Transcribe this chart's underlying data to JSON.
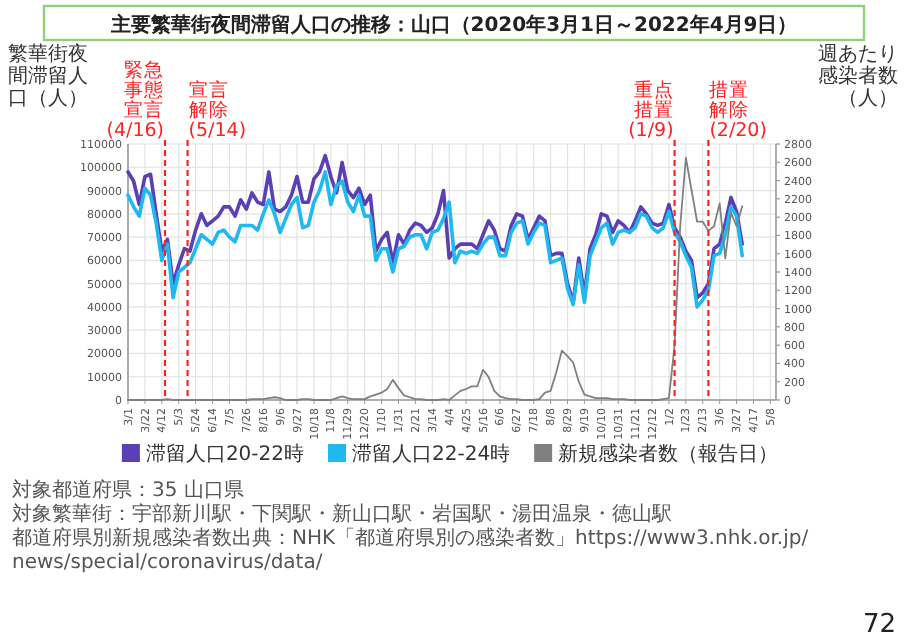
{
  "chart_data": {
    "type": "line",
    "title": "主要繁華街夜間滞留人口の推移：山口（2020年3月1日～2022年4月9日）",
    "ylabel": "繁華街夜間滞留人口（人）",
    "y2label": "週あたり感染者数（人）",
    "x": [
      "2020-03-01",
      "2020-03-08",
      "2020-03-15",
      "2020-03-22",
      "2020-03-29",
      "2020-04-05",
      "2020-04-12",
      "2020-04-19",
      "2020-04-26",
      "2020-05-03",
      "2020-05-10",
      "2020-05-17",
      "2020-05-24",
      "2020-05-31",
      "2020-06-07",
      "2020-06-14",
      "2020-06-21",
      "2020-06-28",
      "2020-07-05",
      "2020-07-12",
      "2020-07-19",
      "2020-07-26",
      "2020-08-02",
      "2020-08-09",
      "2020-08-16",
      "2020-08-23",
      "2020-08-30",
      "2020-09-06",
      "2020-09-13",
      "2020-09-20",
      "2020-09-27",
      "2020-10-04",
      "2020-10-11",
      "2020-10-18",
      "2020-10-25",
      "2020-11-01",
      "2020-11-08",
      "2020-11-15",
      "2020-11-22",
      "2020-11-29",
      "2020-12-06",
      "2020-12-13",
      "2020-12-20",
      "2020-12-27",
      "2021-01-03",
      "2021-01-10",
      "2021-01-17",
      "2021-01-24",
      "2021-01-31",
      "2021-02-07",
      "2021-02-14",
      "2021-02-21",
      "2021-02-28",
      "2021-03-07",
      "2021-03-14",
      "2021-03-21",
      "2021-03-28",
      "2021-04-04",
      "2021-04-11",
      "2021-04-18",
      "2021-04-25",
      "2021-05-02",
      "2021-05-09",
      "2021-05-16",
      "2021-05-23",
      "2021-05-30",
      "2021-06-06",
      "2021-06-13",
      "2021-06-20",
      "2021-06-27",
      "2021-07-04",
      "2021-07-11",
      "2021-07-18",
      "2021-07-25",
      "2021-08-01",
      "2021-08-08",
      "2021-08-15",
      "2021-08-22",
      "2021-08-29",
      "2021-09-05",
      "2021-09-12",
      "2021-09-19",
      "2021-09-26",
      "2021-10-03",
      "2021-10-10",
      "2021-10-17",
      "2021-10-24",
      "2021-10-31",
      "2021-11-07",
      "2021-11-14",
      "2021-11-21",
      "2021-11-28",
      "2021-12-05",
      "2021-12-12",
      "2021-12-19",
      "2021-12-26",
      "2022-01-02",
      "2022-01-09",
      "2022-01-16",
      "2022-01-23",
      "2022-01-30",
      "2022-02-06",
      "2022-02-13",
      "2022-02-20",
      "2022-02-27",
      "2022-03-06",
      "2022-03-13",
      "2022-03-20",
      "2022-03-27",
      "2022-04-03"
    ],
    "xlim": [
      "2020-03-01",
      "2022-05-15"
    ],
    "xticks": [
      {
        "value": "2020-03-01",
        "label": "3/1"
      },
      {
        "value": "2020-03-22",
        "label": "3/22"
      },
      {
        "value": "2020-04-12",
        "label": "4/12"
      },
      {
        "value": "2020-05-03",
        "label": "5/3"
      },
      {
        "value": "2020-05-24",
        "label": "5/24"
      },
      {
        "value": "2020-06-14",
        "label": "6/14"
      },
      {
        "value": "2020-07-05",
        "label": "7/5"
      },
      {
        "value": "2020-07-26",
        "label": "7/26"
      },
      {
        "value": "2020-08-16",
        "label": "8/16"
      },
      {
        "value": "2020-09-06",
        "label": "9/6"
      },
      {
        "value": "2020-09-27",
        "label": "9/27"
      },
      {
        "value": "2020-10-18",
        "label": "10/18"
      },
      {
        "value": "2020-11-08",
        "label": "11/8"
      },
      {
        "value": "2020-11-29",
        "label": "11/29"
      },
      {
        "value": "2020-12-20",
        "label": "12/20"
      },
      {
        "value": "2021-01-10",
        "label": "1/10"
      },
      {
        "value": "2021-01-31",
        "label": "1/31"
      },
      {
        "value": "2021-02-21",
        "label": "2/21"
      },
      {
        "value": "2021-03-14",
        "label": "3/14"
      },
      {
        "value": "2021-04-04",
        "label": "4/4"
      },
      {
        "value": "2021-04-25",
        "label": "4/25"
      },
      {
        "value": "2021-05-16",
        "label": "5/16"
      },
      {
        "value": "2021-06-06",
        "label": "6/6"
      },
      {
        "value": "2021-06-27",
        "label": "6/27"
      },
      {
        "value": "2021-07-18",
        "label": "7/18"
      },
      {
        "value": "2021-08-08",
        "label": "8/8"
      },
      {
        "value": "2021-08-29",
        "label": "8/29"
      },
      {
        "value": "2021-09-19",
        "label": "9/19"
      },
      {
        "value": "2021-10-10",
        "label": "10/10"
      },
      {
        "value": "2021-10-31",
        "label": "10/31"
      },
      {
        "value": "2021-11-21",
        "label": "11/21"
      },
      {
        "value": "2021-12-12",
        "label": "12/12"
      },
      {
        "value": "2022-01-02",
        "label": "1/2"
      },
      {
        "value": "2022-01-23",
        "label": "1/23"
      },
      {
        "value": "2022-02-13",
        "label": "2/13"
      },
      {
        "value": "2022-03-06",
        "label": "3/6"
      },
      {
        "value": "2022-03-27",
        "label": "3/27"
      },
      {
        "value": "2022-04-17",
        "label": "4/17"
      },
      {
        "value": "2022-05-08",
        "label": "5/8"
      }
    ],
    "ylim": [
      0,
      110000
    ],
    "yticks": [
      0,
      10000,
      20000,
      30000,
      40000,
      50000,
      60000,
      70000,
      80000,
      90000,
      100000,
      110000
    ],
    "y2lim": [
      0,
      2800
    ],
    "y2ticks": [
      0,
      200,
      400,
      600,
      800,
      1000,
      1200,
      1400,
      1600,
      1800,
      2000,
      2200,
      2400,
      2600,
      2800
    ],
    "series": [
      {
        "name": "滞留人口20-22時",
        "color": "#5b3fb5",
        "values": [
          98000,
          94000,
          84000,
          96000,
          97000,
          80000,
          64000,
          69000,
          50000,
          58000,
          65000,
          64000,
          73000,
          80000,
          75000,
          77000,
          79000,
          83000,
          83000,
          79000,
          86000,
          82000,
          89000,
          85000,
          84000,
          98000,
          82000,
          81000,
          83000,
          88000,
          96000,
          85000,
          85000,
          95000,
          98000,
          105000,
          96000,
          89000,
          102000,
          90000,
          87000,
          91000,
          84000,
          88000,
          64000,
          69000,
          72000,
          59000,
          71000,
          67000,
          73000,
          76000,
          75000,
          72000,
          74000,
          80000,
          90000,
          61000,
          65000,
          67000,
          67000,
          67000,
          65000,
          71000,
          77000,
          73000,
          65000,
          64000,
          75000,
          80000,
          79000,
          69000,
          74000,
          79000,
          77000,
          62000,
          63000,
          63000,
          50000,
          42000,
          61000,
          45000,
          65000,
          71000,
          80000,
          79000,
          72000,
          77000,
          75000,
          72000,
          77000,
          83000,
          80000,
          76000,
          75000,
          76000,
          84000,
          74000,
          70000,
          64000,
          60000,
          44000,
          46000,
          50000,
          65000,
          67000,
          76000,
          87000,
          81000,
          67000
        ]
      },
      {
        "name": "滞留人口22-24時",
        "color": "#1fb8f0",
        "values": [
          88000,
          83000,
          79000,
          91000,
          88000,
          76000,
          60000,
          67000,
          44000,
          55000,
          57000,
          59000,
          65000,
          71000,
          69000,
          67000,
          72000,
          73000,
          70000,
          68000,
          75000,
          75000,
          75000,
          73000,
          80000,
          86000,
          80000,
          72000,
          78000,
          84000,
          87000,
          74000,
          75000,
          85000,
          90000,
          98000,
          84000,
          92000,
          94000,
          85000,
          81000,
          88000,
          79000,
          79000,
          60000,
          65000,
          65000,
          55000,
          65000,
          66000,
          70000,
          71000,
          71000,
          65000,
          72000,
          73000,
          78000,
          85000,
          59000,
          64000,
          63000,
          64000,
          63000,
          67000,
          70000,
          70000,
          62000,
          62000,
          72000,
          76000,
          77000,
          67000,
          72000,
          76000,
          75000,
          59000,
          60000,
          61000,
          48000,
          41000,
          58000,
          42000,
          62000,
          68000,
          74000,
          76000,
          67000,
          72000,
          73000,
          72000,
          74000,
          80000,
          79000,
          74000,
          72000,
          74000,
          81000,
          72000,
          68000,
          62000,
          57000,
          40000,
          43000,
          47000,
          62000,
          63000,
          71000,
          83000,
          79000,
          62000
        ]
      },
      {
        "name": "新規感染者数（報告日）",
        "color": "#808080",
        "axis": "y2",
        "values": [
          0,
          0,
          0,
          0,
          0,
          0,
          0,
          10,
          0,
          0,
          0,
          0,
          0,
          0,
          0,
          0,
          0,
          0,
          0,
          0,
          0,
          0,
          10,
          10,
          10,
          20,
          30,
          20,
          0,
          0,
          0,
          10,
          10,
          0,
          0,
          0,
          0,
          20,
          40,
          20,
          10,
          10,
          10,
          40,
          60,
          80,
          120,
          220,
          130,
          50,
          30,
          10,
          10,
          0,
          0,
          0,
          10,
          0,
          50,
          100,
          120,
          150,
          150,
          330,
          250,
          100,
          40,
          20,
          10,
          10,
          0,
          0,
          0,
          10,
          80,
          100,
          300,
          540,
          480,
          410,
          200,
          60,
          40,
          20,
          20,
          20,
          10,
          10,
          10,
          0,
          0,
          0,
          0,
          0,
          0,
          10,
          20,
          600,
          1900,
          2650,
          2300,
          1950,
          1950,
          1850,
          1900,
          2150,
          1550,
          2050,
          1900,
          2120
        ]
      }
    ],
    "ref_lines": [
      {
        "axis": "x",
        "value": "2020-04-16",
        "label": "緊急事態宣言(4/16)",
        "color": "#ff2020",
        "line_style": "dashed"
      },
      {
        "axis": "x",
        "value": "2020-05-14",
        "label": "宣言解除(5/14)",
        "color": "#ff2020",
        "line_style": "dashed"
      },
      {
        "axis": "x",
        "value": "2022-01-09",
        "label": "重点措置(1/9)",
        "color": "#ff2020",
        "line_style": "dashed"
      },
      {
        "axis": "x",
        "value": "2022-02-20",
        "label": "措置解除(2/20)",
        "color": "#ff2020",
        "line_style": "dashed"
      }
    ],
    "grid": true,
    "legend": "bottom",
    "annotations": [
      "対象都道府県：35 山口県",
      "対象繁華街：宇部新川駅・下関駅・新山口駅・岩国駅・湯田温泉・徳山駅",
      "都道府県別新規感染者数出典：NHK「都道府県別の感染者数」https://www3.nhk.or.jp/news/special/coronavirus/data/",
      "72"
    ]
  }
}
